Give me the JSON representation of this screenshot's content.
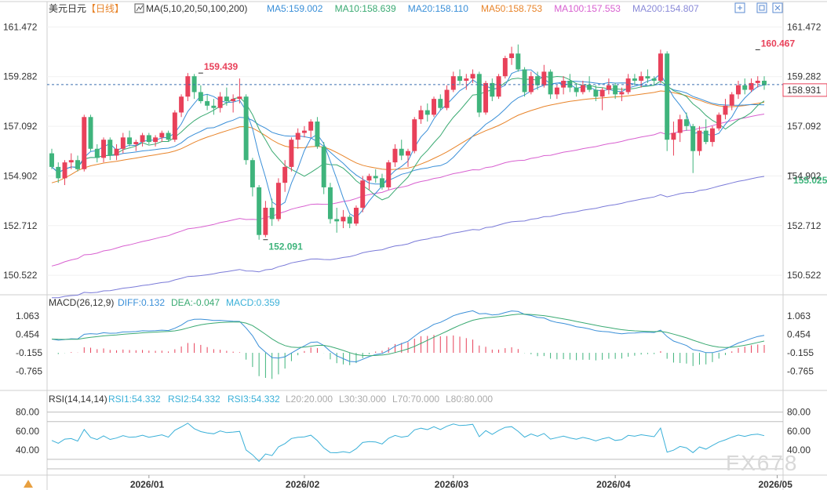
{
  "header": {
    "symbol": "美元日元",
    "period": "【日线】",
    "ma_label": "MA(5,10,20,50,100,200)",
    "ma_values": [
      {
        "text": "MA5:159.002",
        "color": "#3a8fd8"
      },
      {
        "text": "MA10:158.639",
        "color": "#3aaa72"
      },
      {
        "text": "MA20:158.110",
        "color": "#3a8fd8"
      },
      {
        "text": "MA50:158.753",
        "color": "#e8842a"
      },
      {
        "text": "MA100:157.553",
        "color": "#d860d0"
      },
      {
        "text": "MA200:154.807",
        "color": "#8a8ad8"
      }
    ]
  },
  "macd_header": {
    "label": "MACD(26,12,9)",
    "diff": "DIFF:0.132",
    "dea": "DEA:-0.047",
    "macd": "MACD:0.359"
  },
  "rsi_header": {
    "label": "RSI(14,14,14)",
    "rsi1": "RSI1:54.332",
    "rsi2": "RSI2:54.332",
    "rsi3": "RSI3:54.332",
    "l20": "L20:20.000",
    "l30": "L30:30.000",
    "l70": "L70:70.000",
    "l80": "L80:80.000"
  },
  "current_price_label": "158.931",
  "watermark": "FX678",
  "toolbar_icons": [
    "expand-icon",
    "restore-icon",
    "settings-icon",
    "close-icon"
  ],
  "colors": {
    "up": "#e8415a",
    "down": "#3fb47c",
    "ma5": "#3a8fd8",
    "ma10": "#3aaa72",
    "ma20": "#3a8fd8",
    "ma50": "#e8842a",
    "ma100": "#d860d0",
    "ma200": "#7a7ad8",
    "diff": "#3a8fd8",
    "dea": "#3aaa72",
    "rsi": "#3ab0d8"
  },
  "chart_data": [
    {
      "type": "candlestick",
      "title": "美元日元【日线】",
      "y_ticks": [
        161.472,
        159.282,
        157.092,
        154.902,
        152.712,
        150.522
      ],
      "ylim": [
        149.8,
        161.9
      ],
      "x_date_labels": [
        {
          "label": "2026/01",
          "index": 15
        },
        {
          "label": "2026/02",
          "index": 39
        },
        {
          "label": "2026/03",
          "index": 62
        },
        {
          "label": "2026/04",
          "index": 87
        },
        {
          "label": "2026/05",
          "index": 112
        }
      ],
      "annotations": [
        {
          "text": "159.439",
          "index": 23,
          "value": 159.439,
          "color": "#e8415a"
        },
        {
          "text": "152.091",
          "index": 33,
          "value": 152.091,
          "color": "#3fb47c"
        },
        {
          "text": "160.467",
          "index": 109,
          "value": 160.467,
          "color": "#e8415a"
        },
        {
          "text": "155.025",
          "index": 114,
          "value": 155.025,
          "color": "#3fb47c"
        }
      ],
      "current_price": 158.931,
      "ohlc": [
        [
          155.9,
          156.1,
          155.2,
          155.3
        ],
        [
          155.3,
          155.5,
          154.6,
          154.8
        ],
        [
          154.8,
          155.6,
          154.5,
          155.5
        ],
        [
          155.5,
          155.9,
          155.2,
          155.6
        ],
        [
          155.6,
          155.8,
          155.1,
          155.2
        ],
        [
          155.2,
          157.6,
          155.1,
          157.5
        ],
        [
          157.5,
          157.6,
          156.0,
          156.1
        ],
        [
          156.1,
          156.3,
          155.5,
          155.7
        ],
        [
          155.7,
          156.6,
          155.5,
          156.5
        ],
        [
          156.5,
          156.6,
          155.6,
          155.8
        ],
        [
          155.8,
          156.3,
          155.6,
          156.1
        ],
        [
          156.1,
          156.8,
          155.9,
          156.6
        ],
        [
          156.6,
          156.9,
          156.2,
          156.3
        ],
        [
          156.3,
          156.5,
          156.0,
          156.4
        ],
        [
          156.4,
          156.8,
          156.2,
          156.7
        ],
        [
          156.7,
          156.8,
          156.3,
          156.4
        ],
        [
          156.4,
          156.7,
          156.2,
          156.6
        ],
        [
          156.6,
          156.9,
          156.4,
          156.8
        ],
        [
          156.8,
          156.9,
          156.4,
          156.5
        ],
        [
          156.5,
          157.8,
          156.4,
          157.7
        ],
        [
          157.7,
          158.5,
          157.5,
          158.4
        ],
        [
          158.4,
          159.44,
          158.2,
          159.3
        ],
        [
          159.3,
          159.4,
          158.3,
          158.6
        ],
        [
          158.6,
          158.9,
          158.1,
          158.2
        ],
        [
          158.2,
          158.5,
          157.8,
          158.0
        ],
        [
          158.0,
          158.3,
          157.6,
          157.9
        ],
        [
          157.9,
          158.6,
          157.7,
          158.4
        ],
        [
          158.4,
          158.8,
          158.0,
          158.2
        ],
        [
          158.2,
          158.5,
          157.7,
          158.3
        ],
        [
          158.3,
          159.2,
          158.1,
          158.4
        ],
        [
          158.4,
          158.5,
          155.4,
          155.6
        ],
        [
          155.6,
          155.7,
          154.0,
          154.4
        ],
        [
          154.4,
          154.5,
          152.09,
          152.3
        ],
        [
          152.3,
          153.8,
          152.2,
          153.5
        ],
        [
          153.5,
          153.9,
          152.7,
          153.0
        ],
        [
          153.0,
          154.8,
          152.9,
          154.6
        ],
        [
          154.6,
          155.6,
          154.2,
          155.3
        ],
        [
          155.3,
          156.6,
          155.1,
          156.5
        ],
        [
          156.5,
          157.0,
          156.1,
          156.8
        ],
        [
          156.8,
          157.1,
          156.6,
          156.9
        ],
        [
          156.9,
          157.4,
          156.6,
          157.3
        ],
        [
          157.3,
          157.5,
          156.1,
          156.2
        ],
        [
          156.2,
          156.4,
          154.1,
          154.4
        ],
        [
          154.4,
          154.6,
          152.8,
          153.0
        ],
        [
          153.0,
          153.5,
          152.4,
          152.9
        ],
        [
          152.9,
          153.4,
          152.6,
          153.1
        ],
        [
          153.1,
          153.2,
          152.6,
          152.8
        ],
        [
          152.8,
          153.6,
          152.7,
          153.5
        ],
        [
          153.5,
          154.9,
          153.3,
          154.7
        ],
        [
          154.7,
          155.0,
          154.3,
          154.9
        ],
        [
          154.9,
          155.2,
          154.6,
          154.8
        ],
        [
          154.8,
          155.0,
          154.3,
          154.4
        ],
        [
          154.4,
          155.6,
          154.3,
          155.5
        ],
        [
          155.5,
          156.3,
          155.3,
          156.1
        ],
        [
          156.1,
          156.5,
          155.6,
          155.8
        ],
        [
          155.8,
          156.1,
          155.3,
          156.0
        ],
        [
          156.0,
          157.5,
          155.9,
          157.4
        ],
        [
          157.4,
          158.0,
          157.2,
          157.8
        ],
        [
          157.8,
          158.1,
          157.3,
          157.6
        ],
        [
          157.6,
          158.4,
          157.5,
          158.3
        ],
        [
          158.3,
          158.5,
          157.8,
          157.9
        ],
        [
          157.9,
          158.9,
          157.8,
          158.7
        ],
        [
          158.7,
          159.5,
          158.6,
          159.3
        ],
        [
          159.3,
          159.6,
          158.9,
          159.1
        ],
        [
          159.1,
          159.4,
          158.7,
          159.2
        ],
        [
          159.2,
          159.6,
          159.0,
          159.4
        ],
        [
          159.4,
          159.5,
          157.5,
          157.7
        ],
        [
          157.7,
          159.1,
          157.6,
          159.0
        ],
        [
          159.0,
          159.2,
          158.2,
          158.4
        ],
        [
          158.4,
          159.4,
          158.3,
          159.3
        ],
        [
          159.3,
          160.2,
          159.2,
          160.1
        ],
        [
          160.1,
          160.6,
          159.8,
          160.3
        ],
        [
          160.3,
          160.7,
          159.5,
          159.6
        ],
        [
          159.6,
          159.7,
          158.4,
          158.6
        ],
        [
          158.6,
          159.5,
          158.5,
          159.3
        ],
        [
          159.3,
          159.5,
          158.7,
          158.9
        ],
        [
          158.9,
          159.8,
          158.8,
          159.5
        ],
        [
          159.5,
          159.6,
          158.3,
          158.5
        ],
        [
          158.5,
          158.9,
          158.3,
          158.8
        ],
        [
          158.8,
          159.3,
          158.5,
          159.1
        ],
        [
          159.1,
          159.4,
          158.6,
          158.8
        ],
        [
          158.8,
          159.0,
          158.4,
          158.6
        ],
        [
          158.6,
          159.1,
          158.5,
          158.9
        ],
        [
          158.9,
          159.3,
          158.6,
          158.7
        ],
        [
          158.7,
          158.9,
          158.2,
          158.4
        ],
        [
          158.4,
          158.8,
          157.8,
          158.7
        ],
        [
          158.7,
          159.2,
          158.5,
          158.9
        ],
        [
          158.9,
          159.0,
          158.3,
          158.5
        ],
        [
          158.5,
          158.8,
          158.2,
          158.6
        ],
        [
          158.6,
          159.4,
          158.5,
          159.2
        ],
        [
          159.2,
          159.4,
          158.9,
          159.1
        ],
        [
          159.1,
          159.5,
          158.8,
          159.3
        ],
        [
          159.3,
          159.6,
          159.0,
          159.2
        ],
        [
          159.2,
          159.3,
          158.9,
          159.1
        ],
        [
          159.1,
          160.47,
          159.0,
          160.3
        ],
        [
          160.3,
          160.4,
          156.0,
          156.5
        ],
        [
          156.5,
          157.3,
          155.8,
          156.8
        ],
        [
          156.8,
          157.6,
          156.4,
          157.4
        ],
        [
          157.4,
          157.7,
          156.9,
          157.1
        ],
        [
          157.1,
          157.2,
          155.03,
          156.0
        ],
        [
          156.0,
          157.1,
          155.8,
          156.9
        ],
        [
          156.9,
          157.4,
          156.3,
          156.4
        ],
        [
          156.4,
          157.1,
          156.2,
          157.0
        ],
        [
          157.0,
          157.7,
          156.9,
          157.6
        ],
        [
          157.6,
          158.3,
          157.4,
          158.0
        ],
        [
          158.0,
          158.6,
          157.8,
          158.5
        ],
        [
          158.5,
          159.1,
          158.3,
          158.9
        ],
        [
          158.9,
          159.2,
          158.5,
          158.7
        ],
        [
          158.7,
          159.2,
          158.6,
          159.0
        ],
        [
          159.0,
          159.3,
          158.8,
          159.1
        ],
        [
          159.1,
          159.3,
          158.7,
          158.9
        ]
      ],
      "ma200_end": 154.807,
      "ma100_end": 157.553,
      "ma50_end": 158.753
    },
    {
      "type": "bar",
      "title": "MACD(26,12,9)",
      "y_ticks": [
        1.063,
        0.454,
        -0.155,
        -0.765
      ],
      "ylim": [
        -1.35,
        1.25
      ]
    },
    {
      "type": "line",
      "title": "RSI(14,14,14)",
      "y_ticks": [
        80.0,
        60.0,
        40.0
      ],
      "levels": [
        20,
        30,
        70,
        80
      ],
      "ylim": [
        15,
        88
      ]
    }
  ]
}
